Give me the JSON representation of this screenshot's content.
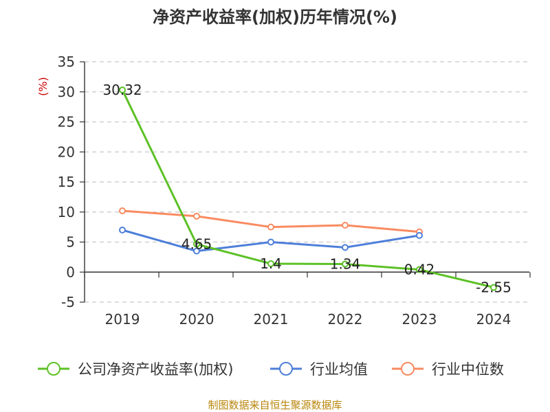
{
  "chart_data": {
    "type": "line",
    "title": "净资产收益率(加权)历年情况(%)",
    "ylabel": "(%)",
    "xlabel": "",
    "categories": [
      "2019",
      "2020",
      "2021",
      "2022",
      "2023",
      "2024"
    ],
    "ylim": [
      -5,
      35
    ],
    "yticks": [
      35,
      30,
      25,
      20,
      15,
      10,
      5,
      0,
      -5
    ],
    "grid": true,
    "legend_position": "bottom",
    "series": [
      {
        "name": "公司净资产收益率(加权)",
        "color": "#5cc126",
        "values": [
          30.32,
          4.65,
          1.4,
          1.34,
          0.42,
          -2.55
        ],
        "data_labels": [
          "30.32",
          "4.65",
          "1.4",
          "1.34",
          "0.42",
          "-2.55"
        ]
      },
      {
        "name": "行业均值",
        "color": "#4e7fd9",
        "values": [
          7.0,
          3.5,
          5.0,
          4.1,
          6.1,
          null
        ]
      },
      {
        "name": "行业中位数",
        "color": "#f98b60",
        "values": [
          10.2,
          9.3,
          7.5,
          7.8,
          6.7,
          null
        ]
      }
    ]
  },
  "source": "制图数据来自恒生聚源数据库"
}
